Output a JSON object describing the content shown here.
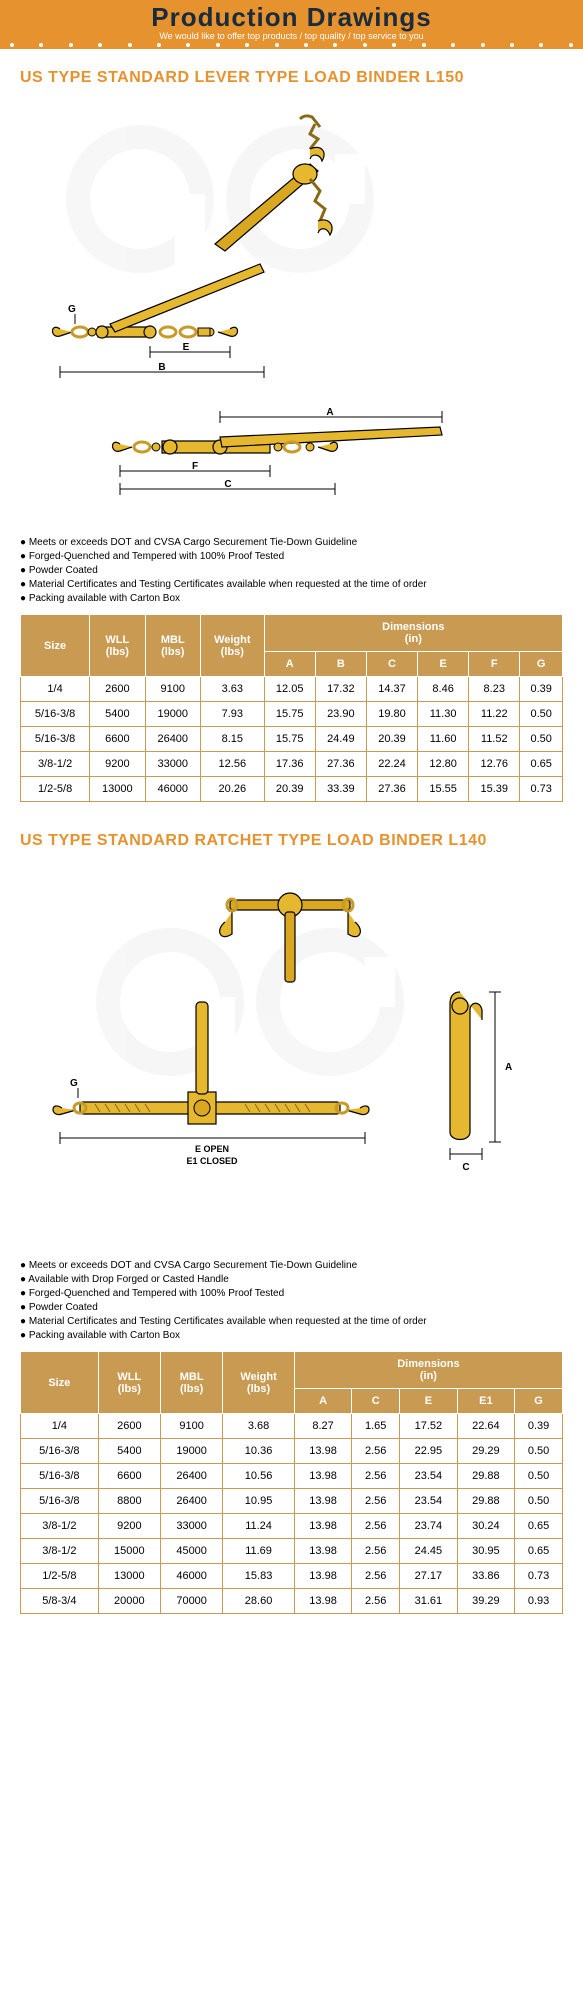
{
  "header": {
    "title": "Production Drawings",
    "subtitle": "We would like to offer top products / top quality / top service to you",
    "banner_bg": "#e5922f",
    "title_color": "#1a2b3c",
    "subtitle_color": "#ffffff"
  },
  "product1": {
    "title": "US TYPE STANDARD LEVER TYPE LOAD BINDER L150",
    "title_color": "#e5922f",
    "diagram_color": "#e5b82f",
    "diagram_stroke": "#000000",
    "bullets": [
      "Meets or exceeds DOT and CVSA Cargo Securement Tie-Down Guideline",
      "Forged-Quenched and Tempered with 100% Proof Tested",
      "Powder Coated",
      "Material Certificates and Testing Certificates available when requested at the time of order",
      "Packing available with Carton Box"
    ],
    "table": {
      "header_bg": "#c89a52",
      "header_color": "#ffffff",
      "border_color": "#c89a52",
      "dim_label": "Dimensions\n(in)",
      "columns_main": [
        "Size",
        "WLL\n(lbs)",
        "MBL\n(lbs)",
        "Weight\n(lbs)"
      ],
      "columns_dim": [
        "A",
        "B",
        "C",
        "E",
        "F",
        "G"
      ],
      "rows": [
        [
          "1/4",
          "2600",
          "9100",
          "3.63",
          "12.05",
          "17.32",
          "14.37",
          "8.46",
          "8.23",
          "0.39"
        ],
        [
          "5/16-3/8",
          "5400",
          "19000",
          "7.93",
          "15.75",
          "23.90",
          "19.80",
          "11.30",
          "11.22",
          "0.50"
        ],
        [
          "5/16-3/8",
          "6600",
          "26400",
          "8.15",
          "15.75",
          "24.49",
          "20.39",
          "11.60",
          "11.52",
          "0.50"
        ],
        [
          "3/8-1/2",
          "9200",
          "33000",
          "12.56",
          "17.36",
          "27.36",
          "22.24",
          "12.80",
          "12.76",
          "0.65"
        ],
        [
          "1/2-5/8",
          "13000",
          "46000",
          "20.26",
          "20.39",
          "33.39",
          "27.36",
          "15.55",
          "15.39",
          "0.73"
        ]
      ]
    }
  },
  "product2": {
    "title": "US TYPE STANDARD RATCHET TYPE LOAD BINDER L140",
    "title_color": "#e5922f",
    "diagram_color": "#e5b82f",
    "diagram_stroke": "#000000",
    "dim_labels": [
      "A",
      "C",
      "G",
      "E OPEN",
      "E1 CLOSED"
    ],
    "bullets": [
      "Meets or exceeds DOT and CVSA Cargo Securement Tie-Down Guideline",
      "Available with Drop Forged or Casted Handle",
      "Forged-Quenched and Tempered with 100% Proof Tested",
      "Powder Coated",
      "Material Certificates and Testing Certificates available when requested at the time of order",
      "Packing available with Carton Box"
    ],
    "table": {
      "header_bg": "#c89a52",
      "header_color": "#ffffff",
      "border_color": "#c89a52",
      "dim_label": "Dimensions\n(in)",
      "columns_main": [
        "Size",
        "WLL\n(lbs)",
        "MBL\n(lbs)",
        "Weight\n(lbs)"
      ],
      "columns_dim": [
        "A",
        "C",
        "E",
        "E1",
        "G"
      ],
      "rows": [
        [
          "1/4",
          "2600",
          "9100",
          "3.68",
          "8.27",
          "1.65",
          "17.52",
          "22.64",
          "0.39"
        ],
        [
          "5/16-3/8",
          "5400",
          "19000",
          "10.36",
          "13.98",
          "2.56",
          "22.95",
          "29.29",
          "0.50"
        ],
        [
          "5/16-3/8",
          "6600",
          "26400",
          "10.56",
          "13.98",
          "2.56",
          "23.54",
          "29.88",
          "0.50"
        ],
        [
          "5/16-3/8",
          "8800",
          "26400",
          "10.95",
          "13.98",
          "2.56",
          "23.54",
          "29.88",
          "0.50"
        ],
        [
          "3/8-1/2",
          "9200",
          "33000",
          "11.24",
          "13.98",
          "2.56",
          "23.74",
          "30.24",
          "0.65"
        ],
        [
          "3/8-1/2",
          "15000",
          "45000",
          "11.69",
          "13.98",
          "2.56",
          "24.45",
          "30.95",
          "0.65"
        ],
        [
          "1/2-5/8",
          "13000",
          "46000",
          "15.83",
          "13.98",
          "2.56",
          "27.17",
          "33.86",
          "0.73"
        ],
        [
          "5/8-3/4",
          "20000",
          "70000",
          "28.60",
          "13.98",
          "2.56",
          "31.61",
          "39.29",
          "0.93"
        ]
      ]
    }
  },
  "watermark": "GC"
}
